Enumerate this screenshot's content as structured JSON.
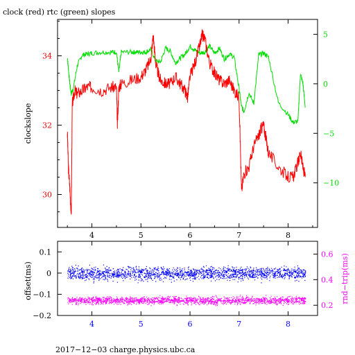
{
  "chart_data": [
    {
      "type": "line",
      "title": "clock (red) rtc (green) slopes",
      "ylabel": "clockslope",
      "xlim": [
        3.3,
        8.6
      ],
      "ylim": [
        29.05,
        35.05
      ],
      "y2lim": [
        -14.5,
        6.5
      ],
      "xticks": [
        4,
        5,
        6,
        7,
        8
      ],
      "yticks": [
        30,
        32,
        34
      ],
      "y2ticks": [
        5,
        0,
        -5,
        -10
      ],
      "xtick_labels": [
        "4",
        "5",
        "6",
        "7",
        "8"
      ],
      "ytick_labels": [
        "30",
        "32",
        "34"
      ],
      "y2tick_labels": [
        "5",
        "0",
        "−5",
        "−10"
      ],
      "colors": {
        "clock": "#ff0000",
        "rtc": "#00dd00",
        "axes": "#000000"
      },
      "series": [
        {
          "axis": "left",
          "x": [
            3.5,
            3.52,
            3.55,
            3.58,
            3.6,
            3.65,
            3.7,
            3.8,
            3.9,
            4.0,
            4.2,
            4.4,
            4.5,
            4.52,
            4.55,
            4.6,
            4.8,
            5.0,
            5.1,
            5.2,
            5.25,
            5.3,
            5.35,
            5.4,
            5.5,
            5.6,
            5.7,
            5.8,
            5.9,
            5.95,
            6.0,
            6.1,
            6.2,
            6.25,
            6.3,
            6.4,
            6.5,
            6.6,
            6.7,
            6.8,
            6.9,
            7.0,
            7.05,
            7.1,
            7.2,
            7.3,
            7.4,
            7.45,
            7.5,
            7.55,
            7.6,
            7.8,
            8.0,
            8.1,
            8.2,
            8.25,
            8.3,
            8.35
          ],
          "y": [
            31.8,
            30.8,
            30.2,
            29.4,
            32.6,
            33.0,
            32.9,
            33.0,
            33.1,
            33.1,
            33.0,
            33.1,
            33.1,
            32.0,
            33.1,
            33.2,
            33.3,
            33.4,
            33.6,
            33.9,
            34.6,
            33.8,
            33.5,
            33.3,
            33.2,
            33.2,
            33.4,
            33.2,
            33.0,
            32.8,
            33.4,
            33.8,
            34.3,
            34.6,
            34.5,
            33.8,
            33.5,
            33.3,
            33.2,
            33.3,
            33.0,
            32.8,
            30.1,
            30.6,
            30.8,
            31.4,
            31.7,
            31.9,
            32.0,
            31.6,
            31.2,
            30.8,
            30.5,
            30.5,
            30.9,
            31.2,
            30.8,
            30.5
          ]
        },
        {
          "axis": "right",
          "x": [
            3.5,
            3.52,
            3.55,
            3.58,
            3.62,
            3.7,
            3.8,
            3.9,
            4.0,
            4.2,
            4.4,
            4.5,
            4.55,
            4.6,
            4.8,
            4.9,
            5.0,
            5.1,
            5.2,
            5.3,
            5.4,
            5.5,
            5.6,
            5.7,
            5.8,
            5.9,
            6.0,
            6.1,
            6.2,
            6.3,
            6.4,
            6.5,
            6.6,
            6.7,
            6.8,
            6.9,
            7.0,
            7.05,
            7.1,
            7.2,
            7.3,
            7.4,
            7.5,
            7.6,
            7.8,
            8.0,
            8.1,
            8.2,
            8.25,
            8.3,
            8.35
          ],
          "y": [
            2.6,
            1.6,
            0.0,
            -1.0,
            -0.5,
            1.8,
            2.9,
            3.0,
            3.1,
            3.2,
            3.2,
            3.2,
            1.2,
            3.2,
            3.2,
            3.2,
            3.2,
            3.2,
            3.5,
            2.3,
            2.2,
            3.6,
            3.3,
            2.1,
            2.6,
            3.0,
            3.8,
            3.4,
            3.1,
            3.2,
            3.8,
            3.1,
            3.6,
            2.5,
            3.0,
            2.7,
            -0.5,
            -2.3,
            -2.8,
            -0.9,
            -2.0,
            2.9,
            3.1,
            2.7,
            -1.9,
            -3.1,
            -3.9,
            -3.8,
            1.0,
            0.1,
            -2.4
          ]
        }
      ]
    },
    {
      "type": "scatter",
      "ylabel": "offset(ms)",
      "y2label": "rnd−trip(ms)",
      "xlim": [
        3.3,
        8.6
      ],
      "ylim": [
        -0.2,
        0.15
      ],
      "y2lim": [
        0.12,
        0.7
      ],
      "xticks": [
        4,
        5,
        6,
        7,
        8
      ],
      "yticks": [
        0.1,
        0,
        -0.1,
        -0.2
      ],
      "y2ticks": [
        0.6,
        0.4,
        0.2
      ],
      "xtick_labels": [
        "4",
        "5",
        "6",
        "7",
        "8"
      ],
      "ytick_labels": [
        "0.1",
        "0",
        "−0.1",
        "−0.2"
      ],
      "y2tick_labels": [
        "0.6",
        "0.4",
        "0.2"
      ],
      "colors": {
        "offset": "#0000ff",
        "roundtrip": "#ff00ff",
        "axes": "#000000"
      },
      "series": [
        {
          "axis": "left",
          "x_range": [
            3.5,
            8.35
          ],
          "center": 0.0,
          "spread": 0.05
        },
        {
          "axis": "right",
          "x_range": [
            3.5,
            8.35
          ],
          "center": 0.24,
          "spread": 0.05
        }
      ]
    }
  ],
  "footer": "2017−12−03 charge.physics.ubc.ca"
}
